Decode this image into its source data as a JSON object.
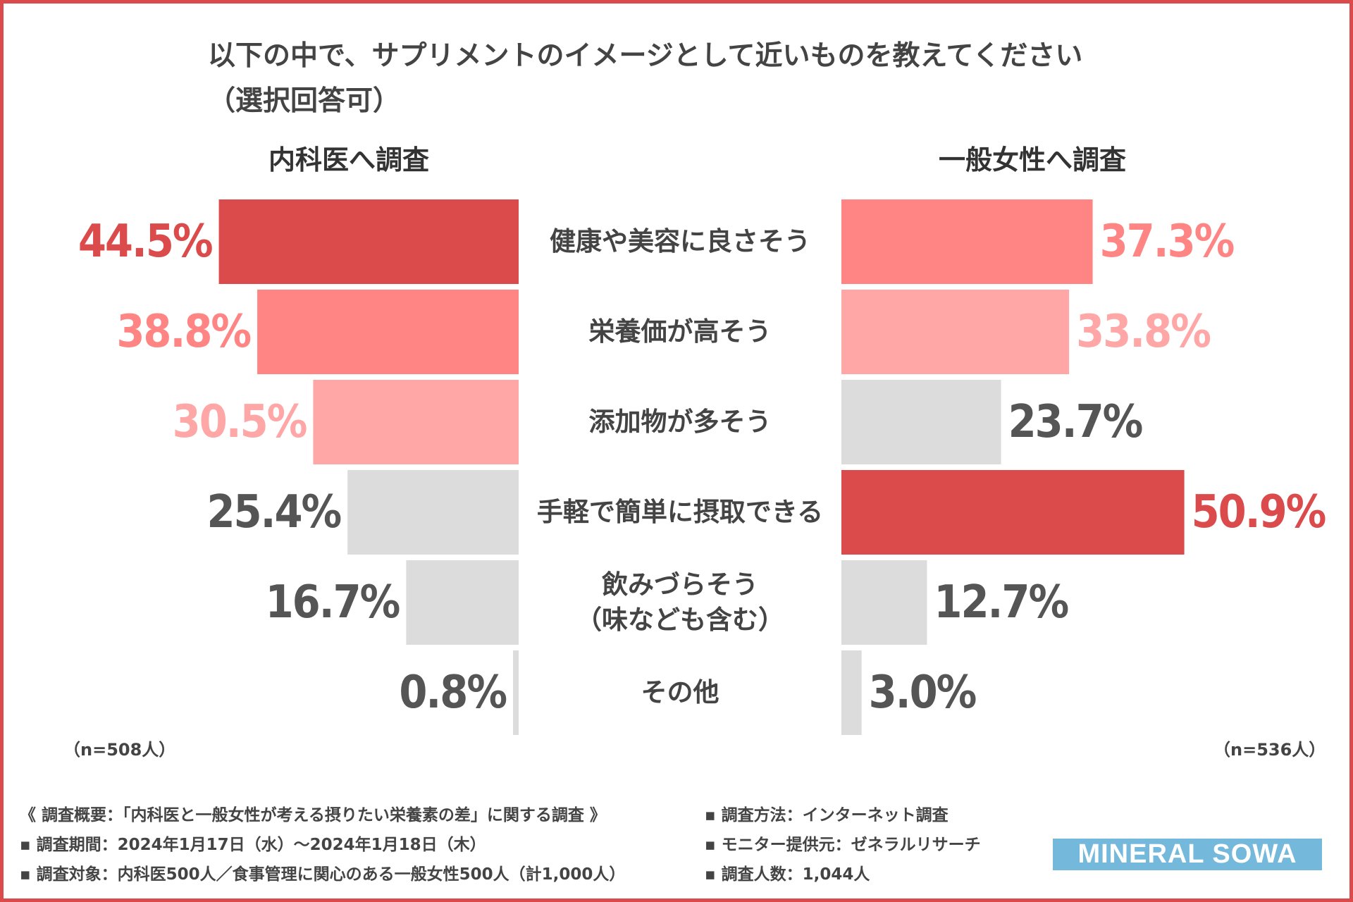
{
  "chart_data": {
    "type": "bar",
    "title_line1": "以下の中で、サプリメントのイメージとして近いものを教えてください",
    "title_line2": "（選択回答可）",
    "categories": [
      [
        "健康や美容に良さそう"
      ],
      [
        "栄養価が高そう"
      ],
      [
        "添加物が多そう"
      ],
      [
        "手軽で簡単に摂取できる"
      ],
      [
        "飲みづらそう",
        "（味なども含む）"
      ],
      [
        "その他"
      ]
    ],
    "series": [
      {
        "name": "内科医へ調査",
        "n_label": "（n=508人）",
        "values": [
          44.5,
          38.8,
          30.5,
          25.4,
          16.7,
          0.8
        ],
        "labels": [
          "44.5%",
          "38.8%",
          "30.5%",
          "25.4%",
          "16.7%",
          "0.8%"
        ]
      },
      {
        "name": "一般女性へ調査",
        "n_label": "（n=536人）",
        "values": [
          37.3,
          33.8,
          23.7,
          50.9,
          12.7,
          3.0
        ],
        "labels": [
          "37.3%",
          "33.8%",
          "23.7%",
          "50.9%",
          "12.7%",
          "3.0%"
        ]
      }
    ],
    "colors": {
      "rank1": "#dc4b4b",
      "rank2": "#ff8585",
      "rank3": "#ffa6a6",
      "other_bar": "#dcdcdc",
      "other_text": "#555555"
    },
    "xlim": [
      0,
      55
    ]
  },
  "footer": {
    "left": [
      "《 調査概要：「内科医と一般女性が考える摂りたい栄養素の差」に関する調査 》",
      "▪ 調査期間：2024年1月17日（水）～2024年1月18日（木）",
      "▪ 調査対象：内科医500人／食事管理に関心のある一般女性500人（計1,000人）"
    ],
    "right": [
      "▪ 調査方法：インターネット調査",
      "▪ モニター提供元：ゼネラルリサーチ",
      "▪ 調査人数：1,044人"
    ]
  },
  "logo_text": "MINERAL SOWA",
  "frame_color": "#dc4b4b"
}
